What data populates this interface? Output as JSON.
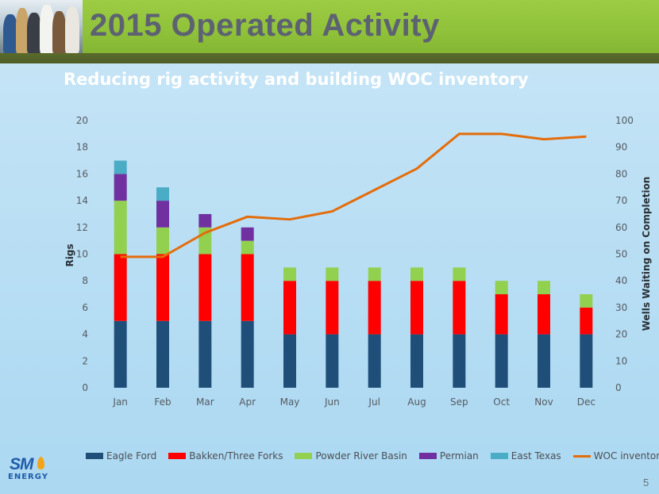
{
  "header": {
    "title": "2015 Operated Activity",
    "subtitle": "Reducing rig activity and building WOC inventory"
  },
  "chart_data": {
    "type": "bar",
    "stacked": true,
    "categories": [
      "Jan",
      "Feb",
      "Mar",
      "Apr",
      "May",
      "Jun",
      "Jul",
      "Aug",
      "Sep",
      "Oct",
      "Nov",
      "Dec"
    ],
    "series": [
      {
        "name": "Eagle Ford",
        "color": "#1f4e79",
        "values": [
          5,
          5,
          5,
          5,
          4,
          4,
          4,
          4,
          4,
          4,
          4,
          4
        ]
      },
      {
        "name": "Bakken/Three Forks",
        "color": "#ff0000",
        "values": [
          5,
          5,
          5,
          5,
          4,
          4,
          4,
          4,
          4,
          3,
          3,
          2
        ]
      },
      {
        "name": "Powder River Basin",
        "color": "#92d050",
        "values": [
          4,
          2,
          2,
          1,
          1,
          1,
          1,
          1,
          1,
          1,
          1,
          1
        ]
      },
      {
        "name": "Permian",
        "color": "#7030a0",
        "values": [
          2,
          2,
          1,
          1,
          0,
          0,
          0,
          0,
          0,
          0,
          0,
          0
        ]
      },
      {
        "name": "East Texas",
        "color": "#4bacc6",
        "values": [
          1,
          1,
          0,
          0,
          0,
          0,
          0,
          0,
          0,
          0,
          0,
          0
        ]
      }
    ],
    "line_series": {
      "name": "WOC inventory",
      "color": "#e46c0a",
      "axis": "right",
      "values": [
        49,
        49,
        58,
        64,
        63,
        66,
        74,
        82,
        95,
        95,
        93,
        94
      ]
    },
    "ylabel": "Rigs",
    "ylim": [
      0,
      20
    ],
    "yticks": [
      0,
      2,
      4,
      6,
      8,
      10,
      12,
      14,
      16,
      18,
      20
    ],
    "y2label": "Wells Waiting on Completion",
    "y2lim": [
      0,
      100
    ],
    "y2ticks": [
      0,
      10,
      20,
      30,
      40,
      50,
      60,
      70,
      80,
      90,
      100
    ],
    "grid": false,
    "legend_position": "bottom"
  },
  "footer": {
    "logo_text": "SM",
    "logo_subtext": "ENERGY",
    "page_number": "5"
  }
}
